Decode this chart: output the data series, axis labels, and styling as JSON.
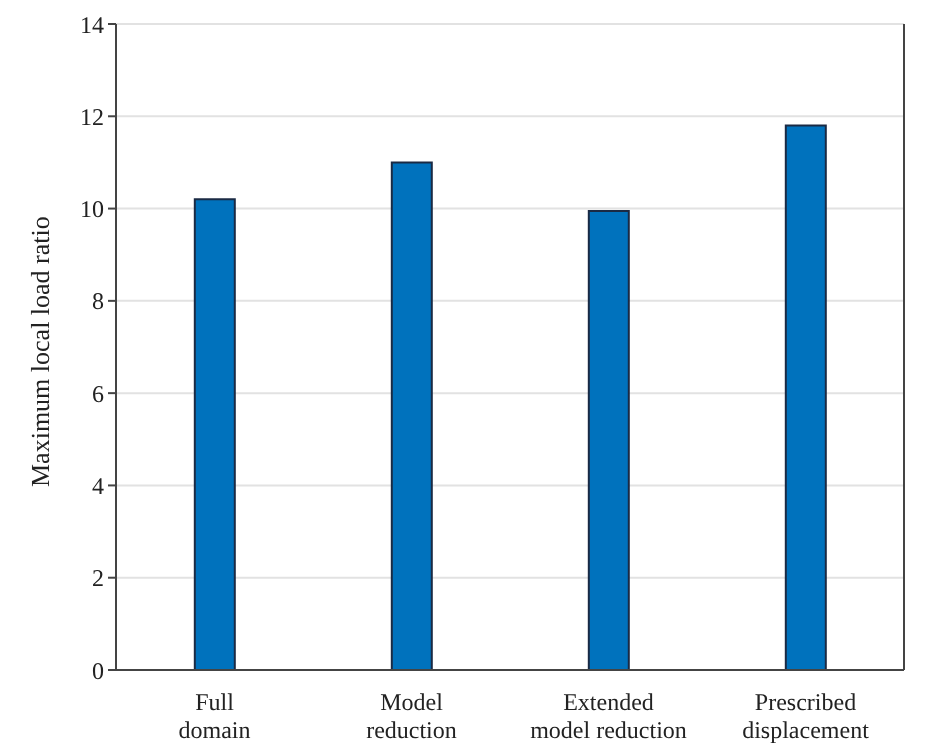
{
  "chart_data": {
    "type": "bar",
    "ylabel": "Maximum local load ratio",
    "categories": [
      "Full\ndomain",
      "Model\nreduction",
      "Extended\nmodel reduction",
      "Prescribed\ndisplacement"
    ],
    "values": [
      10.2,
      11.0,
      9.95,
      11.8
    ],
    "color": "#0072bd",
    "ylim": [
      0,
      14
    ],
    "yticks": [
      0,
      2,
      4,
      6,
      8,
      10,
      12,
      14
    ],
    "grid": "y"
  }
}
